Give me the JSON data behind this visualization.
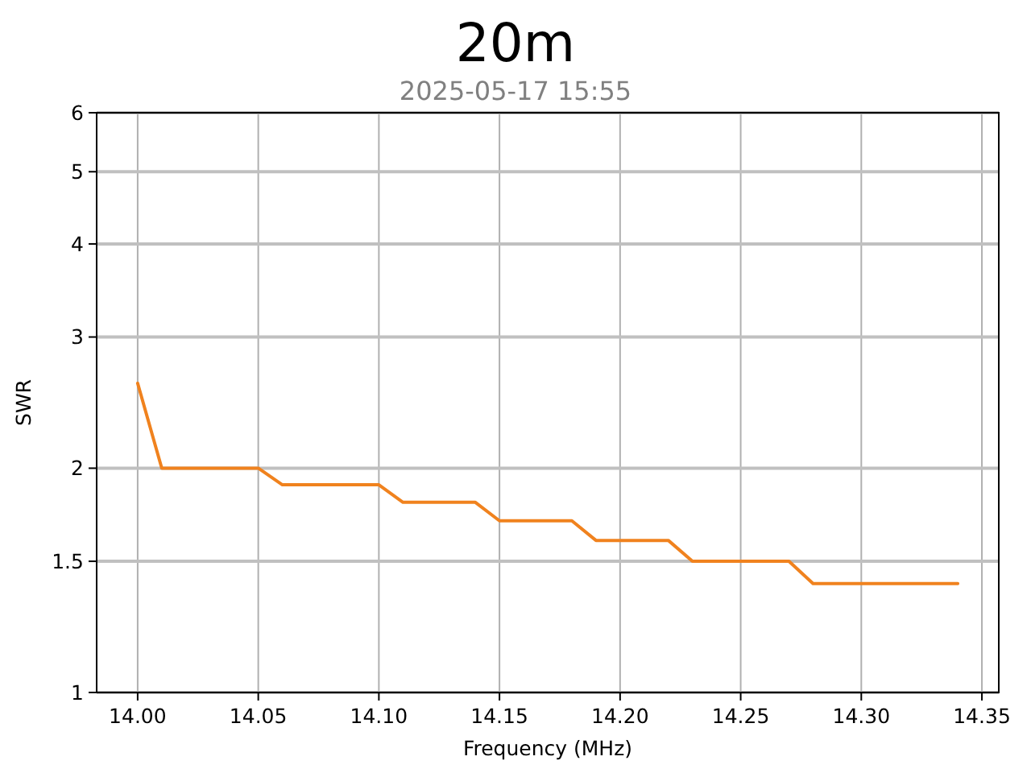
{
  "chart_data": {
    "type": "line",
    "title": "20m",
    "subtitle": "2025-05-17 15:55",
    "xlabel": "Frequency (MHz)",
    "ylabel": "SWR",
    "x": [
      14.0,
      14.01,
      14.02,
      14.03,
      14.04,
      14.05,
      14.06,
      14.07,
      14.08,
      14.09,
      14.1,
      14.11,
      14.12,
      14.13,
      14.14,
      14.15,
      14.16,
      14.17,
      14.18,
      14.19,
      14.2,
      14.21,
      14.22,
      14.23,
      14.24,
      14.25,
      14.26,
      14.27,
      14.28,
      14.29,
      14.3,
      14.31,
      14.32,
      14.33,
      14.34
    ],
    "series": [
      {
        "color": "#f0821e",
        "values": [
          2.6,
          2.0,
          2.0,
          2.0,
          2.0,
          2.0,
          1.9,
          1.9,
          1.9,
          1.9,
          1.9,
          1.8,
          1.8,
          1.8,
          1.8,
          1.7,
          1.7,
          1.7,
          1.7,
          1.6,
          1.6,
          1.6,
          1.6,
          1.5,
          1.5,
          1.5,
          1.5,
          1.5,
          1.4,
          1.4,
          1.4,
          1.4,
          1.4,
          1.4,
          1.4
        ]
      }
    ],
    "xlim": [
      13.983,
      14.357
    ],
    "xticks": [
      {
        "value": 14.0,
        "label": "14.00"
      },
      {
        "value": 14.05,
        "label": "14.05"
      },
      {
        "value": 14.1,
        "label": "14.10"
      },
      {
        "value": 14.15,
        "label": "14.15"
      },
      {
        "value": 14.2,
        "label": "14.20"
      },
      {
        "value": 14.25,
        "label": "14.25"
      },
      {
        "value": 14.3,
        "label": "14.30"
      },
      {
        "value": 14.35,
        "label": "14.35"
      }
    ],
    "ylim": [
      1,
      6
    ],
    "yticks": [
      1,
      1.5,
      2,
      3,
      4,
      5,
      6
    ],
    "log": true,
    "grid": true,
    "marker": "none",
    "line_style": "solid"
  }
}
